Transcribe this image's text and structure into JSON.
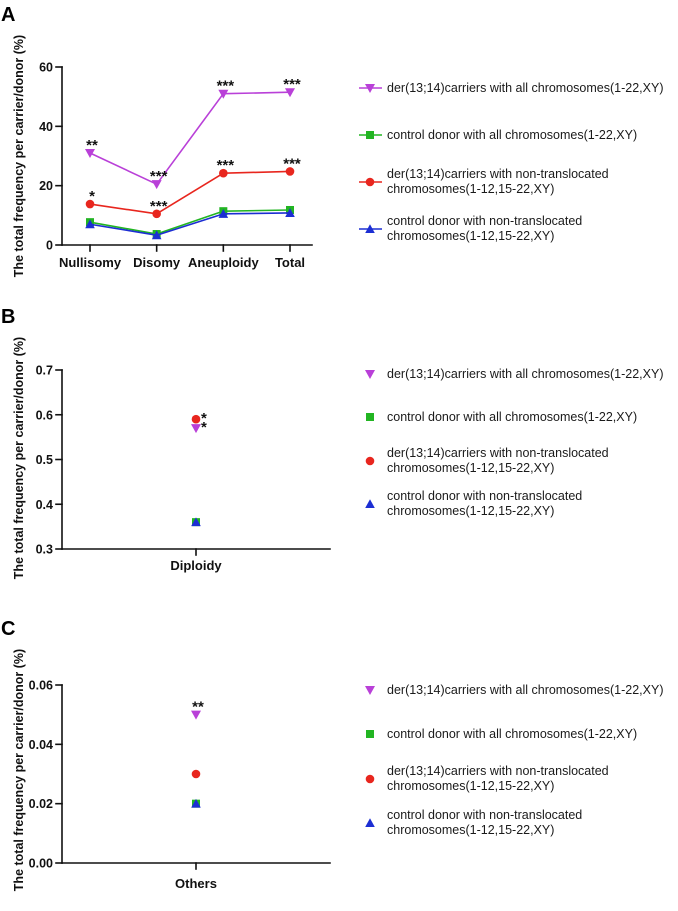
{
  "chart_data": [
    {
      "panel_label": "A",
      "type": "line",
      "ylabel": "The total frequency per carrier/donor (%)",
      "categories": [
        "Nullisomy",
        "Disomy",
        "Aneuploidy",
        "Total"
      ],
      "ylim": [
        0,
        60
      ],
      "yticks": [
        0,
        20,
        40,
        60
      ],
      "ytick_labels": [
        "0",
        "20",
        "40",
        "60"
      ],
      "legend_position": "right",
      "series": [
        {
          "name": "der(13;14)carriers with all chromosomes(1-22,XY)",
          "color": "#b940d8",
          "marker": "triangle-down-icon",
          "values": [
            31,
            20.5,
            51,
            51.5
          ],
          "annotations": [
            "**",
            "***",
            "***",
            "***"
          ]
        },
        {
          "name": "control donor with all chromosomes(1-22,XY)",
          "color": "#22b522",
          "marker": "square-icon",
          "values": [
            7.7,
            3.7,
            11.4,
            11.8
          ],
          "annotations": [
            null,
            null,
            null,
            null
          ]
        },
        {
          "name": "der(13;14)carriers with non-translocated chromosomes(1-12,15-22,XY)",
          "color": "#e8261e",
          "marker": "circle-icon",
          "values": [
            13.8,
            10.5,
            24.2,
            24.8
          ],
          "annotations": [
            "*",
            "***",
            "***",
            "***"
          ]
        },
        {
          "name": "control donor with non-translocated chromosomes(1-12,15-22,XY)",
          "color": "#1c2ed3",
          "marker": "triangle-up-icon",
          "values": [
            7.0,
            3.3,
            10.5,
            10.8
          ],
          "annotations": [
            null,
            null,
            null,
            null
          ]
        }
      ]
    },
    {
      "panel_label": "B",
      "type": "scatter",
      "ylabel": "The total frequency per carrier/donor (%)",
      "categories": [
        "Diploidy"
      ],
      "ylim": [
        0.3,
        0.7
      ],
      "yticks": [
        0.3,
        0.4,
        0.5,
        0.6,
        0.7
      ],
      "ytick_labels": [
        "0.3",
        "0.4",
        "0.5",
        "0.6",
        "0.7"
      ],
      "legend_position": "right",
      "series": [
        {
          "name": "der(13;14)carriers with all chromosomes(1-22,XY)",
          "color": "#b940d8",
          "marker": "triangle-down-icon",
          "values": [
            0.57
          ],
          "annotations": [
            "*"
          ]
        },
        {
          "name": "control donor with all chromosomes(1-22,XY)",
          "color": "#22b522",
          "marker": "square-icon",
          "values": [
            0.36
          ],
          "annotations": [
            null
          ]
        },
        {
          "name": "der(13;14)carriers with non-translocated chromosomes(1-12,15-22,XY)",
          "color": "#e8261e",
          "marker": "circle-icon",
          "values": [
            0.59
          ],
          "annotations": [
            "*"
          ]
        },
        {
          "name": "control donor with non-translocated chromosomes(1-12,15-22,XY)",
          "color": "#1c2ed3",
          "marker": "triangle-up-icon",
          "values": [
            0.36
          ],
          "annotations": [
            null
          ]
        }
      ]
    },
    {
      "panel_label": "C",
      "type": "scatter",
      "ylabel": "The total frequency per carrier/donor (%)",
      "categories": [
        "Others"
      ],
      "ylim": [
        0,
        0.06
      ],
      "yticks": [
        0,
        0.02,
        0.04,
        0.06
      ],
      "ytick_labels": [
        "0.00",
        "0.02",
        "0.04",
        "0.06"
      ],
      "legend_position": "right",
      "series": [
        {
          "name": "der(13;14)carriers with all chromosomes(1-22,XY)",
          "color": "#b940d8",
          "marker": "triangle-down-icon",
          "values": [
            0.05
          ],
          "annotations": [
            "**"
          ]
        },
        {
          "name": "control donor with all chromosomes(1-22,XY)",
          "color": "#22b522",
          "marker": "square-icon",
          "values": [
            0.02
          ],
          "annotations": [
            null
          ]
        },
        {
          "name": "der(13;14)carriers with non-translocated chromosomes(1-12,15-22,XY)",
          "color": "#e8261e",
          "marker": "circle-icon",
          "values": [
            0.03
          ],
          "annotations": [
            null
          ]
        },
        {
          "name": "control donor with non-translocated chromosomes(1-12,15-22,XY)",
          "color": "#1c2ed3",
          "marker": "triangle-up-icon",
          "values": [
            0.02
          ],
          "annotations": [
            null
          ]
        }
      ]
    }
  ]
}
